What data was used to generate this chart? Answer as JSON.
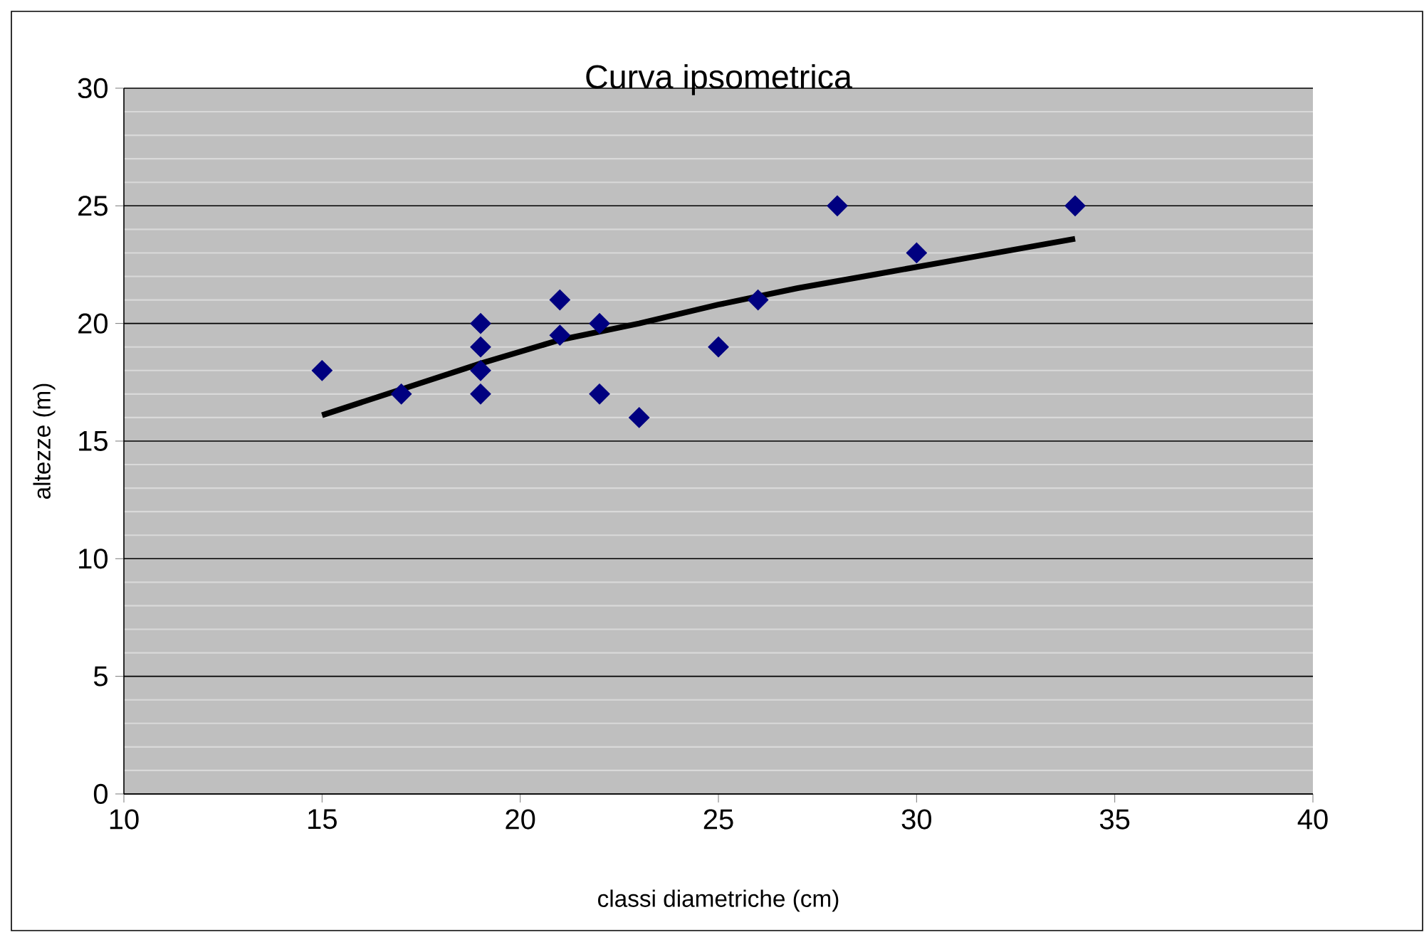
{
  "chart_data": {
    "type": "scatter",
    "title": "Curva ipsometrica",
    "xlabel": "classi diametriche (cm)",
    "ylabel": "altezze (m)",
    "xlim": [
      10,
      40
    ],
    "xticks": [
      10,
      15,
      20,
      25,
      30,
      35,
      40
    ],
    "ylim": [
      0,
      30
    ],
    "yticks": [
      0,
      5,
      10,
      15,
      20,
      25,
      30
    ],
    "grid": "y",
    "marker": "diamond",
    "series": [
      {
        "color": "#000080",
        "x": [
          15,
          17,
          19,
          19,
          19,
          19,
          21,
          21,
          22,
          22,
          23,
          25,
          26,
          28,
          30,
          34
        ],
        "values": [
          18,
          17,
          20,
          19,
          18,
          17,
          21,
          19.5,
          20,
          17,
          16,
          19,
          21,
          25,
          23,
          25
        ]
      },
      {
        "type": "line",
        "marker": "none",
        "color": "#000000",
        "x": [
          15,
          17,
          19,
          21,
          23,
          25,
          27,
          29,
          31,
          34
        ],
        "values": [
          16.1,
          17.2,
          18.3,
          19.3,
          20.0,
          20.8,
          21.5,
          22.1,
          22.7,
          23.6
        ]
      }
    ]
  }
}
